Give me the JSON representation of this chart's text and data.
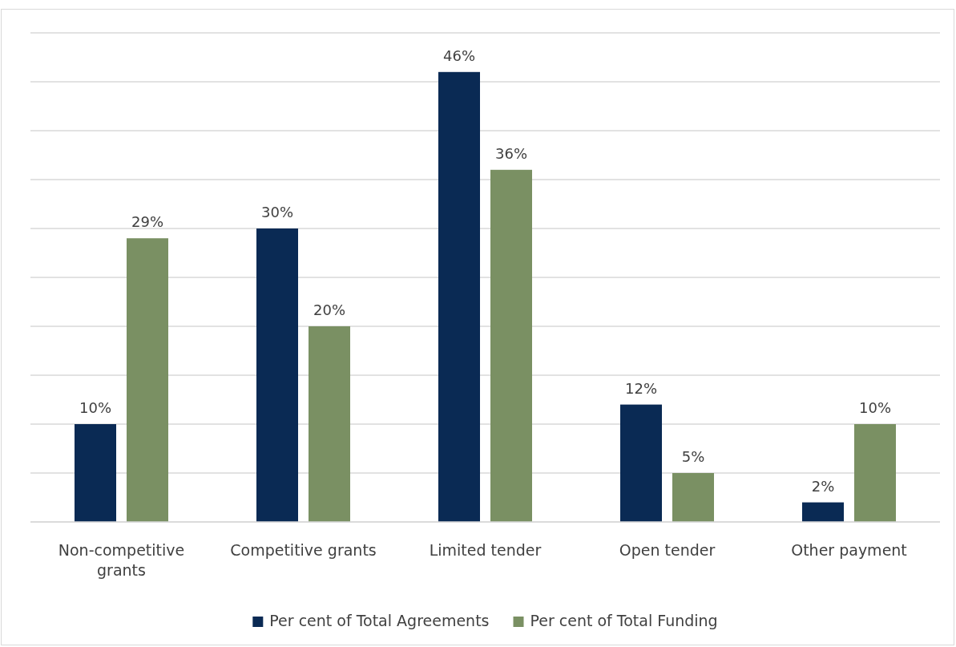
{
  "chart_data": {
    "type": "bar",
    "categories": [
      "Non-competitive grants",
      "Competitive grants",
      "Limited tender",
      "Open tender",
      "Other payment"
    ],
    "series": [
      {
        "name": "Per cent of Total Agreements",
        "color": "#0a2a54",
        "values": [
          10,
          30,
          46,
          12,
          2
        ],
        "value_labels": [
          "10%",
          "30%",
          "46%",
          "12%",
          "2%"
        ]
      },
      {
        "name": "Per cent of Total Funding",
        "color": "#7a9063",
        "values": [
          29,
          20,
          36,
          5,
          10
        ],
        "value_labels": [
          "29%",
          "20%",
          "36%",
          "5%",
          "10%"
        ]
      }
    ],
    "ylim": [
      0,
      50
    ],
    "yticks": [
      {
        "value": 0,
        "label": null
      },
      {
        "value": 5,
        "label": null
      },
      {
        "value": 10,
        "label": null
      },
      {
        "value": 15,
        "label": null
      },
      {
        "value": 20,
        "label": null
      },
      {
        "value": 25,
        "label": null
      },
      {
        "value": 30,
        "label": null
      },
      {
        "value": 35,
        "label": null
      },
      {
        "value": 40,
        "label": null
      },
      {
        "value": 45,
        "label": null
      },
      {
        "value": 50,
        "label": null
      }
    ],
    "grid": "y",
    "tick_labels": "x",
    "legend": "bottom"
  }
}
